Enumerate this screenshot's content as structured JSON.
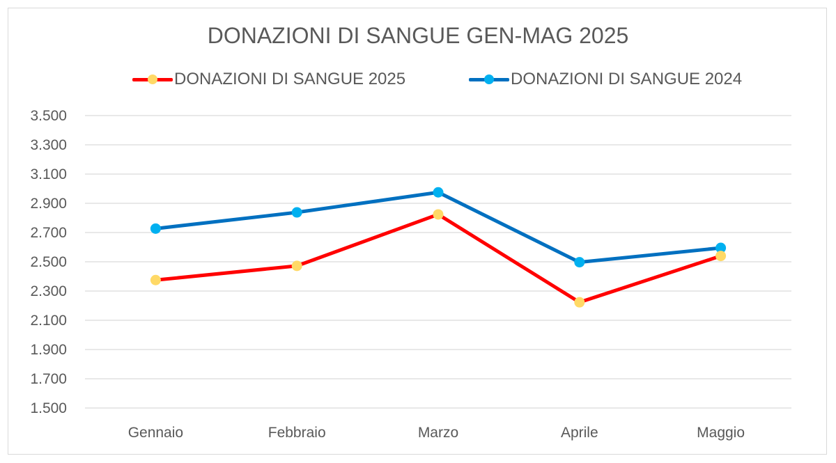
{
  "chart_data": {
    "type": "line",
    "title": "DONAZIONI DI SANGUE GEN-MAG 2025",
    "categories": [
      "Gennaio",
      "Febbraio",
      "Marzo",
      "Aprile",
      "Maggio"
    ],
    "series": [
      {
        "name": "DONAZIONI DI SANGUE 2025",
        "values": [
          2375,
          2472,
          2824,
          2223,
          2540
        ],
        "line_color": "#ff0000",
        "marker_color": "#ffd966"
      },
      {
        "name": "DONAZIONI DI SANGUE 2024",
        "values": [
          2727,
          2838,
          2975,
          2497,
          2595
        ],
        "line_color": "#0070c0",
        "marker_color": "#00b0f0"
      }
    ],
    "ylim": [
      1500,
      3500
    ],
    "y_ticks": [
      "1.500",
      "1.700",
      "1.900",
      "2.100",
      "2.300",
      "2.500",
      "2.700",
      "2.900",
      "3.100",
      "3.300",
      "3.500"
    ],
    "y_tick_values": [
      1500,
      1700,
      1900,
      2100,
      2300,
      2500,
      2700,
      2900,
      3100,
      3300,
      3500
    ],
    "xlabel": "",
    "ylabel": "",
    "grid": true,
    "legend_position": "top"
  }
}
